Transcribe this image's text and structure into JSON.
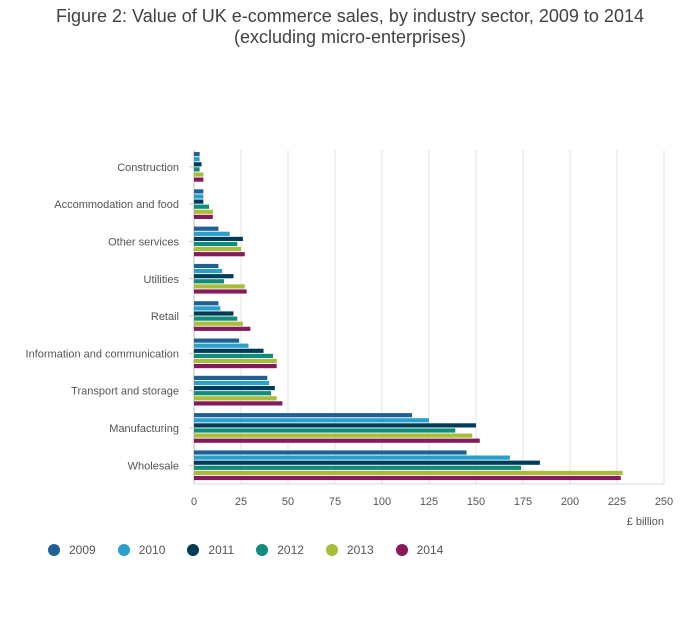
{
  "chart_data": {
    "type": "bar",
    "orientation": "horizontal",
    "title_line1": "Figure 2: Value of UK e-commerce sales, by industry sector, 2009 to 2014",
    "title_line2": "(excluding micro-enterprises)",
    "xlabel": "£ billion",
    "ylabel": "",
    "xlim": [
      0,
      250
    ],
    "xticks": [
      0,
      25,
      50,
      75,
      100,
      125,
      150,
      175,
      200,
      225,
      250
    ],
    "grid": true,
    "legend_position": "bottom-left",
    "categories": [
      "Construction",
      "Accommodation and food",
      "Other services",
      "Utilities",
      "Retail",
      "Information and communication",
      "Transport and storage",
      "Manufacturing",
      "Wholesale"
    ],
    "series": [
      {
        "name": "2009",
        "color": "#206095",
        "values": [
          3,
          5,
          13,
          13,
          13,
          24,
          39,
          116,
          145
        ]
      },
      {
        "name": "2010",
        "color": "#27a0cc",
        "values": [
          3,
          5,
          19,
          15,
          14,
          29,
          40,
          125,
          168
        ]
      },
      {
        "name": "2011",
        "color": "#003c57",
        "values": [
          4,
          5,
          26,
          21,
          21,
          37,
          43,
          150,
          184
        ]
      },
      {
        "name": "2012",
        "color": "#118c7b",
        "values": [
          3,
          8,
          23,
          16,
          23,
          42,
          41,
          139,
          174
        ]
      },
      {
        "name": "2013",
        "color": "#a8bd3a",
        "values": [
          5,
          10,
          25,
          27,
          26,
          44,
          44,
          148,
          228
        ]
      },
      {
        "name": "2014",
        "color": "#871a5b",
        "values": [
          5,
          10,
          27,
          28,
          30,
          44,
          47,
          152,
          227
        ]
      }
    ]
  }
}
